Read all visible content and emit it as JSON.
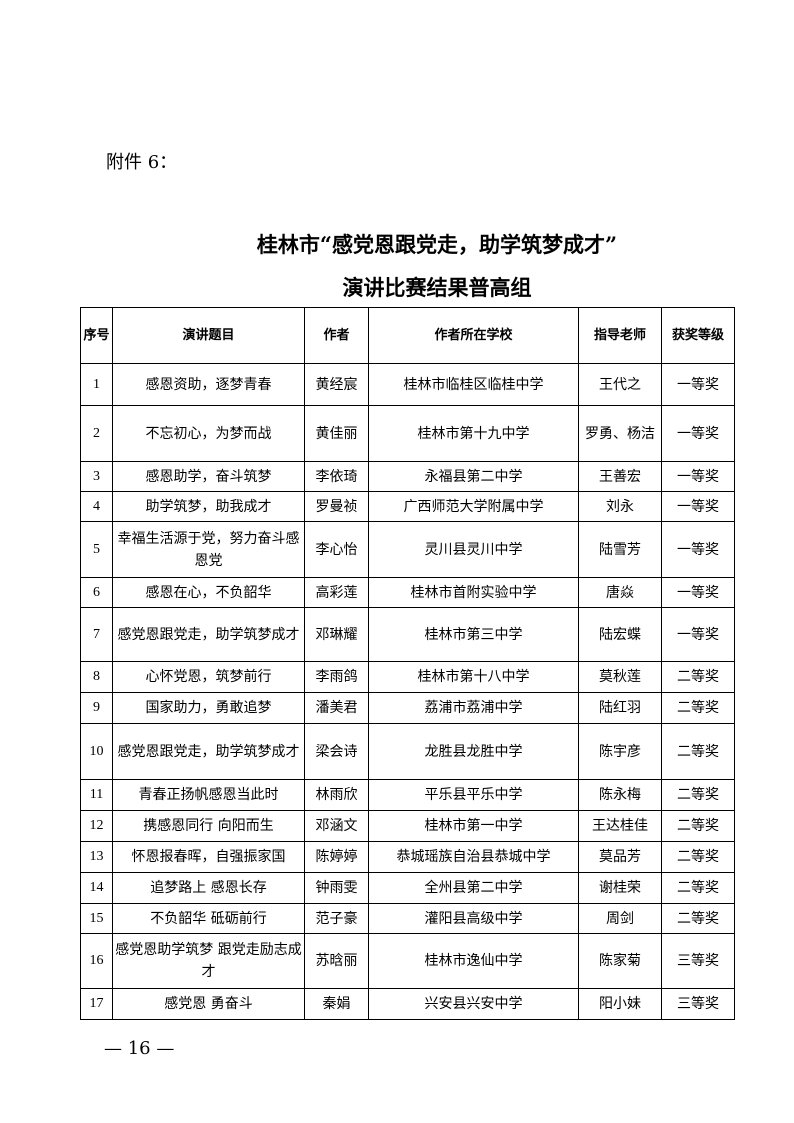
{
  "attachment_label": "附件 6：",
  "title_line1": "桂林市“感党恩跟党走，助学筑梦成才”",
  "title_line2": "演讲比赛结果普高组",
  "table": {
    "headers": [
      "序号",
      "演讲题目",
      "作者",
      "作者所在学校",
      "指导老师",
      "获奖等级"
    ],
    "rows": [
      [
        "1",
        "感恩资助，逐梦青春",
        "黄经宸",
        "桂林市临桂区临桂中学",
        "王代之",
        "一等奖"
      ],
      [
        "2",
        "不忘初心，为梦而战",
        "黄佳丽",
        "桂林市第十九中学",
        "罗勇、杨洁",
        "一等奖"
      ],
      [
        "3",
        "感恩助学，奋斗筑梦",
        "李依琦",
        "永福县第二中学",
        "王善宏",
        "一等奖"
      ],
      [
        "4",
        "助学筑梦，助我成才",
        "罗曼祯",
        "广西师范大学附属中学",
        "刘永",
        "一等奖"
      ],
      [
        "5",
        "幸福生活源于党，努力奋斗感恩党",
        "李心怡",
        "灵川县灵川中学",
        "陆雪芳",
        "一等奖"
      ],
      [
        "6",
        "感恩在心，不负韶华",
        "高彩莲",
        "桂林市首附实验中学",
        "唐焱",
        "一等奖"
      ],
      [
        "7",
        "感党恩跟党走，助学筑梦成才",
        "邓琳耀",
        "桂林市第三中学",
        "陆宏蝶",
        "一等奖"
      ],
      [
        "8",
        "心怀党恩，筑梦前行",
        "李雨鸽",
        "桂林市第十八中学",
        "莫秋莲",
        "二等奖"
      ],
      [
        "9",
        "国家助力，勇敢追梦",
        "潘美君",
        "荔浦市荔浦中学",
        "陆红羽",
        "二等奖"
      ],
      [
        "10",
        "感党恩跟党走，助学筑梦成才",
        "梁会诗",
        "龙胜县龙胜中学",
        "陈宇彦",
        "二等奖"
      ],
      [
        "11",
        "青春正扬帆感恩当此时",
        "林雨欣",
        "平乐县平乐中学",
        "陈永梅",
        "二等奖"
      ],
      [
        "12",
        "携感恩同行 向阳而生",
        "邓涵文",
        "桂林市第一中学",
        "王达桂佳",
        "二等奖"
      ],
      [
        "13",
        "怀恩报春晖，自强振家国",
        "陈婷婷",
        "恭城瑶族自治县恭城中学",
        "莫品芳",
        "二等奖"
      ],
      [
        "14",
        "追梦路上 感恩长存",
        "钟雨雯",
        "全州县第二中学",
        "谢桂荣",
        "二等奖"
      ],
      [
        "15",
        "不负韶华 砥砺前行",
        "范子豪",
        "灌阳县高级中学",
        "周剑",
        "二等奖"
      ],
      [
        "16",
        "感党恩助学筑梦 跟党走励志成才",
        "苏晗丽",
        "桂林市逸仙中学",
        "陈家菊",
        "三等奖"
      ],
      [
        "17",
        "感党恩 勇奋斗",
        "秦娟",
        "兴安县兴安中学",
        "阳小妹",
        "三等奖"
      ]
    ]
  },
  "footer": "— 16 —"
}
